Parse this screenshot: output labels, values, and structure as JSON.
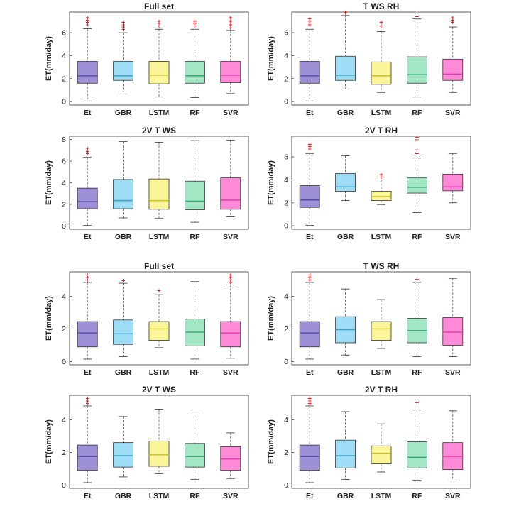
{
  "figure": {
    "ylabel": "ET(mm/day)",
    "categories": [
      "Et",
      "GBR",
      "LSTM",
      "RF",
      "SVR"
    ],
    "colors": {
      "Et": {
        "fill": "#9d90d6",
        "median": "#5b4aa8"
      },
      "GBR": {
        "fill": "#9fdcf5",
        "median": "#3a9fc9"
      },
      "LSTM": {
        "fill": "#fbf59a",
        "median": "#c9bf2a"
      },
      "RF": {
        "fill": "#a3e6c4",
        "median": "#36a874"
      },
      "SVR": {
        "fill": "#ff8ad8",
        "median": "#e23ab0"
      }
    },
    "outlier_color": "#e8161b",
    "outlier_symbol": "+"
  },
  "chart_data": [
    {
      "type": "box",
      "title": "Full set",
      "ylim": [
        -0.3,
        7.8
      ],
      "yticks": [
        0,
        2,
        4,
        6
      ],
      "boxes": [
        {
          "category": "Et",
          "min": 0.05,
          "q1": 1.6,
          "median": 2.25,
          "q3": 3.5,
          "max": 6.35,
          "outliers": [
            6.7,
            6.9,
            7.1,
            7.3
          ]
        },
        {
          "category": "GBR",
          "min": 0.85,
          "q1": 1.85,
          "median": 2.25,
          "q3": 3.5,
          "max": 6.0,
          "outliers": [
            6.3,
            6.5,
            6.7,
            6.9
          ]
        },
        {
          "category": "LSTM",
          "min": 0.4,
          "q1": 1.55,
          "median": 2.3,
          "q3": 3.5,
          "max": 6.3,
          "outliers": [
            6.6,
            6.8,
            7.0
          ]
        },
        {
          "category": "RF",
          "min": 0.35,
          "q1": 1.6,
          "median": 2.25,
          "q3": 3.5,
          "max": 6.3,
          "outliers": [
            6.6,
            6.8,
            7.0
          ]
        },
        {
          "category": "SVR",
          "min": 0.7,
          "q1": 1.65,
          "median": 2.3,
          "q3": 3.5,
          "max": 6.2,
          "outliers": [
            6.4,
            6.7,
            7.0,
            7.3
          ]
        }
      ]
    },
    {
      "type": "box",
      "title": "T WS RH",
      "ylim": [
        -0.3,
        7.8
      ],
      "yticks": [
        0,
        2,
        4,
        6
      ],
      "boxes": [
        {
          "category": "Et",
          "min": 0.05,
          "q1": 1.6,
          "median": 2.25,
          "q3": 3.5,
          "max": 6.3,
          "outliers": [
            6.7,
            7.0,
            7.2
          ]
        },
        {
          "category": "GBR",
          "min": 1.1,
          "q1": 1.85,
          "median": 2.3,
          "q3": 3.95,
          "max": 7.5,
          "outliers": [
            7.75
          ]
        },
        {
          "category": "LSTM",
          "min": 0.8,
          "q1": 1.5,
          "median": 2.25,
          "q3": 3.45,
          "max": 6.1,
          "outliers": [
            6.6,
            6.9
          ]
        },
        {
          "category": "RF",
          "min": 0.4,
          "q1": 1.6,
          "median": 2.35,
          "q3": 3.9,
          "max": 7.2,
          "outliers": [
            7.4
          ]
        },
        {
          "category": "SVR",
          "min": 0.8,
          "q1": 1.85,
          "median": 2.4,
          "q3": 3.7,
          "max": 6.5,
          "outliers": [
            6.9,
            7.1,
            7.3
          ]
        }
      ]
    },
    {
      "type": "box",
      "title": "2V T WS",
      "ylim": [
        -0.3,
        8.3
      ],
      "yticks": [
        0,
        2,
        4,
        6,
        8
      ],
      "boxes": [
        {
          "category": "Et",
          "min": 0.05,
          "q1": 1.6,
          "median": 2.25,
          "q3": 3.5,
          "max": 6.35,
          "outliers": [
            6.7,
            6.9,
            7.2
          ]
        },
        {
          "category": "GBR",
          "min": 0.75,
          "q1": 1.6,
          "median": 2.35,
          "q3": 4.3,
          "max": 7.8,
          "outliers": []
        },
        {
          "category": "LSTM",
          "min": 0.7,
          "q1": 1.55,
          "median": 2.35,
          "q3": 4.35,
          "max": 7.75,
          "outliers": []
        },
        {
          "category": "RF",
          "min": 0.35,
          "q1": 1.5,
          "median": 2.3,
          "q3": 4.15,
          "max": 7.9,
          "outliers": []
        },
        {
          "category": "SVR",
          "min": 0.85,
          "q1": 1.55,
          "median": 2.4,
          "q3": 4.45,
          "max": 7.95,
          "outliers": []
        }
      ]
    },
    {
      "type": "box",
      "title": "2V T RH",
      "ylim": [
        -0.3,
        7.8
      ],
      "yticks": [
        0,
        2,
        4,
        6
      ],
      "boxes": [
        {
          "category": "Et",
          "min": 0.05,
          "q1": 1.6,
          "median": 2.25,
          "q3": 3.5,
          "max": 6.3,
          "outliers": [
            6.7,
            6.9,
            7.1
          ]
        },
        {
          "category": "GBR",
          "min": 2.2,
          "q1": 3.0,
          "median": 3.4,
          "q3": 4.55,
          "max": 6.1,
          "outliers": []
        },
        {
          "category": "LSTM",
          "min": 1.85,
          "q1": 2.2,
          "median": 2.55,
          "q3": 3.0,
          "max": 4.0,
          "outliers": [
            4.25,
            4.45
          ]
        },
        {
          "category": "RF",
          "min": 1.15,
          "q1": 2.85,
          "median": 3.35,
          "q3": 4.2,
          "max": 5.9,
          "outliers": [
            6.3,
            6.6,
            7.5,
            7.7
          ]
        },
        {
          "category": "SVR",
          "min": 2.0,
          "q1": 3.05,
          "median": 3.4,
          "q3": 4.5,
          "max": 6.3,
          "outliers": []
        }
      ]
    },
    {
      "type": "box",
      "title": "Full set",
      "ylim": [
        -0.2,
        5.5
      ],
      "yticks": [
        0,
        2,
        4
      ],
      "boxes": [
        {
          "category": "Et",
          "min": 0.15,
          "q1": 0.9,
          "median": 1.75,
          "q3": 2.45,
          "max": 4.85,
          "outliers": [
            5.0,
            5.15,
            5.3
          ]
        },
        {
          "category": "GBR",
          "min": 0.3,
          "q1": 1.05,
          "median": 1.7,
          "q3": 2.55,
          "max": 4.8,
          "outliers": [
            4.95
          ]
        },
        {
          "category": "LSTM",
          "min": 0.85,
          "q1": 1.3,
          "median": 2.0,
          "q3": 2.45,
          "max": 4.1,
          "outliers": [
            4.35
          ]
        },
        {
          "category": "RF",
          "min": 0.15,
          "q1": 0.95,
          "median": 1.8,
          "q3": 2.6,
          "max": 4.9,
          "outliers": []
        },
        {
          "category": "SVR",
          "min": 0.2,
          "q1": 0.9,
          "median": 1.75,
          "q3": 2.45,
          "max": 4.7,
          "outliers": [
            4.85,
            5.0,
            5.15,
            5.3
          ]
        }
      ]
    },
    {
      "type": "box",
      "title": "T WS RH",
      "ylim": [
        -0.2,
        5.5
      ],
      "yticks": [
        0,
        2,
        4
      ],
      "boxes": [
        {
          "category": "Et",
          "min": 0.15,
          "q1": 0.9,
          "median": 1.75,
          "q3": 2.45,
          "max": 4.85,
          "outliers": [
            5.0,
            5.15,
            5.3
          ]
        },
        {
          "category": "GBR",
          "min": 0.4,
          "q1": 1.15,
          "median": 1.95,
          "q3": 2.75,
          "max": 4.45,
          "outliers": []
        },
        {
          "category": "LSTM",
          "min": 0.8,
          "q1": 1.3,
          "median": 2.0,
          "q3": 2.45,
          "max": 3.8,
          "outliers": []
        },
        {
          "category": "RF",
          "min": 0.3,
          "q1": 1.15,
          "median": 1.9,
          "q3": 2.65,
          "max": 4.85,
          "outliers": [
            5.05
          ]
        },
        {
          "category": "SVR",
          "min": 0.3,
          "q1": 1.0,
          "median": 1.8,
          "q3": 2.7,
          "max": 5.1,
          "outliers": []
        }
      ]
    },
    {
      "type": "box",
      "title": "2V T WS",
      "ylim": [
        -0.2,
        5.5
      ],
      "yticks": [
        0,
        2,
        4
      ],
      "boxes": [
        {
          "category": "Et",
          "min": 0.15,
          "q1": 0.9,
          "median": 1.75,
          "q3": 2.45,
          "max": 4.85,
          "outliers": [
            5.0,
            5.15,
            5.3
          ]
        },
        {
          "category": "GBR",
          "min": 0.5,
          "q1": 1.1,
          "median": 1.8,
          "q3": 2.6,
          "max": 4.2,
          "outliers": []
        },
        {
          "category": "LSTM",
          "min": 0.7,
          "q1": 1.15,
          "median": 1.85,
          "q3": 2.7,
          "max": 4.65,
          "outliers": []
        },
        {
          "category": "RF",
          "min": 0.35,
          "q1": 1.1,
          "median": 1.75,
          "q3": 2.55,
          "max": 4.35,
          "outliers": []
        },
        {
          "category": "SVR",
          "min": 0.4,
          "q1": 0.9,
          "median": 1.6,
          "q3": 2.35,
          "max": 3.2,
          "outliers": []
        }
      ]
    },
    {
      "type": "box",
      "title": "2V T RH",
      "ylim": [
        -0.2,
        5.5
      ],
      "yticks": [
        0,
        2,
        4
      ],
      "boxes": [
        {
          "category": "Et",
          "min": 0.15,
          "q1": 0.9,
          "median": 1.75,
          "q3": 2.45,
          "max": 4.85,
          "outliers": [
            5.0,
            5.15,
            5.3
          ]
        },
        {
          "category": "GBR",
          "min": 0.35,
          "q1": 1.05,
          "median": 1.8,
          "q3": 2.75,
          "max": 4.5,
          "outliers": []
        },
        {
          "category": "LSTM",
          "min": 0.8,
          "q1": 1.3,
          "median": 1.95,
          "q3": 2.4,
          "max": 3.75,
          "outliers": []
        },
        {
          "category": "RF",
          "min": 0.25,
          "q1": 1.05,
          "median": 1.7,
          "q3": 2.65,
          "max": 4.6,
          "outliers": [
            5.05
          ]
        },
        {
          "category": "SVR",
          "min": 0.3,
          "q1": 0.95,
          "median": 1.75,
          "q3": 2.6,
          "max": 4.55,
          "outliers": []
        }
      ]
    }
  ]
}
